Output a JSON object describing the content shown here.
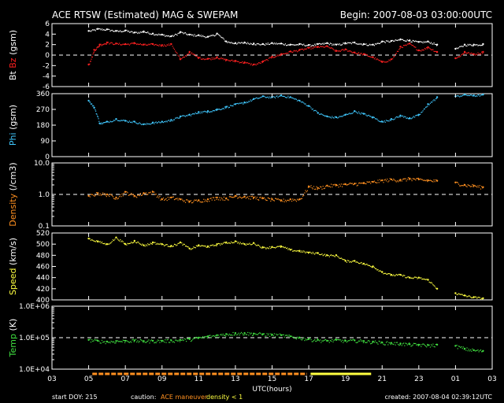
{
  "header": {
    "title": "ACE RTSW (Estimated) MAG & SWEPAM",
    "begin": "Begin: 2007-08-03 03:00:00UTC"
  },
  "footer": {
    "start_doy": "start DOY: 215",
    "caution": "caution:",
    "maneuver": "ACE maneuver",
    "density_lt1": "density < 1",
    "created": "created: 2007-08-04 02:39:12UTC"
  },
  "colors": {
    "bt": "#ffffff",
    "bz": "#ff2020",
    "phi": "#40c8ff",
    "density": "#ff9020",
    "speed": "#ffff40",
    "temp": "#40e040",
    "maneuver": "#ff9020",
    "density_flag": "#ffff40"
  },
  "chart_data": {
    "type": "scatter",
    "x_axis": {
      "xlabel": "UTC(hours)",
      "range": [
        3,
        27
      ],
      "ticks": [
        "03",
        "05",
        "07",
        "09",
        "11",
        "13",
        "15",
        "17",
        "19",
        "21",
        "23",
        "01",
        "03"
      ]
    },
    "panels": [
      {
        "id": "mag",
        "ylabel_parts": [
          {
            "text": "Bt",
            "color": "#ffffff"
          },
          {
            "text": " Bz",
            "color": "#ff2020"
          },
          {
            "text": " (gsm)",
            "color": "#ffffff"
          }
        ],
        "ylim": [
          -6,
          6
        ],
        "yticks": [
          "6",
          "4",
          "2",
          "0",
          "-2",
          "-4",
          "-6"
        ],
        "refline": 0,
        "series": [
          {
            "name": "Bt",
            "color": "#ffffff",
            "x": [
              5,
              5.5,
              6,
              6.5,
              7,
              7.5,
              8,
              8.5,
              9,
              9.5,
              10,
              10.5,
              11,
              11.5,
              12,
              12.5,
              13,
              13.5,
              14,
              14.5,
              15,
              15.5,
              16,
              16.5,
              17,
              17.5,
              18,
              18.5,
              19,
              19.5,
              20,
              20.5,
              21,
              21.5,
              22,
              22.5,
              23,
              23.5,
              24,
              25,
              25.5,
              26,
              26.5
            ],
            "y": [
              4.6,
              5.0,
              4.9,
              4.6,
              4.7,
              4.3,
              4.5,
              4.1,
              3.9,
              3.6,
              4.4,
              3.9,
              3.8,
              3.5,
              4.1,
              2.6,
              2.3,
              2.4,
              2.2,
              2.1,
              2.3,
              2.2,
              2.0,
              2.1,
              1.9,
              2.1,
              2.3,
              2.0,
              2.3,
              2.4,
              2.1,
              2.0,
              2.6,
              2.7,
              3.0,
              2.8,
              2.5,
              2.6,
              2.0,
              1.2,
              2.0,
              2.0,
              2.1
            ]
          },
          {
            "name": "Bz",
            "color": "#ff2020",
            "x": [
              5,
              5.3,
              5.6,
              6,
              6.5,
              7,
              7.5,
              8,
              8.5,
              9,
              9.5,
              10,
              10.5,
              11,
              11.5,
              12,
              12.5,
              13,
              13.5,
              14,
              14.5,
              15,
              15.5,
              16,
              16.5,
              17,
              17.5,
              18,
              18.5,
              19,
              19.5,
              20,
              20.5,
              21,
              21.5,
              22,
              22.5,
              23,
              23.5,
              24,
              25,
              25.5,
              26,
              26.5
            ],
            "y": [
              -1.8,
              1.0,
              2.0,
              2.4,
              2.2,
              2.1,
              2.3,
              2.0,
              2.1,
              1.9,
              2.1,
              -0.8,
              0.6,
              -0.5,
              -0.7,
              -0.4,
              -0.9,
              -1.1,
              -1.4,
              -1.8,
              -1.2,
              -0.3,
              0.2,
              0.7,
              1.0,
              1.4,
              1.6,
              1.7,
              0.8,
              1.1,
              0.5,
              0.2,
              -0.4,
              -1.3,
              -0.8,
              1.6,
              2.2,
              0.9,
              1.5,
              0.6,
              -0.6,
              0.6,
              0.2,
              0.6
            ]
          }
        ]
      },
      {
        "id": "phi",
        "ylabel_parts": [
          {
            "text": "Phi",
            "color": "#40c8ff"
          },
          {
            "text": " (gsm)",
            "color": "#ffffff"
          }
        ],
        "ylim": [
          0,
          360
        ],
        "yticks": [
          "360",
          "270",
          "180",
          "90",
          "0"
        ],
        "series": [
          {
            "name": "Phi",
            "color": "#40c8ff",
            "x": [
              5,
              5.3,
              5.6,
              6,
              6.5,
              7,
              7.5,
              8,
              8.5,
              9,
              9.5,
              10,
              10.5,
              11,
              11.5,
              12,
              12.5,
              13,
              13.5,
              14,
              14.5,
              15,
              15.5,
              16,
              16.5,
              17,
              17.5,
              18,
              18.5,
              19,
              19.5,
              20,
              20.5,
              21,
              21.5,
              22,
              22.5,
              23,
              23.5,
              24,
              25,
              25.5,
              26,
              26.5
            ],
            "y": [
              320,
              280,
              190,
              200,
              215,
              205,
              200,
              185,
              195,
              200,
              210,
              230,
              240,
              255,
              260,
              270,
              285,
              300,
              310,
              330,
              345,
              340,
              350,
              340,
              320,
              290,
              250,
              230,
              225,
              240,
              260,
              245,
              225,
              200,
              215,
              235,
              220,
              240,
              300,
              340,
              345,
              355,
              350,
              355
            ]
          }
        ]
      },
      {
        "id": "density",
        "ylabel_parts": [
          {
            "text": "Density",
            "color": "#ff9020"
          },
          {
            "text": " (/cm3)",
            "color": "#ffffff"
          }
        ],
        "scale": "log",
        "ylim": [
          0.1,
          10
        ],
        "yticks": [
          "10.0",
          "1.0",
          "0.1"
        ],
        "refline": 1.0,
        "series": [
          {
            "name": "Density",
            "color": "#ff9020",
            "x": [
              5,
              5.5,
              6,
              6.5,
              7,
              7.5,
              8,
              8.5,
              9,
              9.5,
              10,
              10.5,
              11,
              11.5,
              12,
              12.5,
              13,
              13.5,
              14,
              14.5,
              15,
              15.5,
              16,
              16.5,
              17,
              17.5,
              18,
              18.5,
              19,
              19.5,
              20,
              20.5,
              21,
              21.5,
              22,
              22.5,
              23,
              23.5,
              24,
              25,
              25.5,
              26,
              26.5
            ],
            "y": [
              0.9,
              1.1,
              1.0,
              0.8,
              1.2,
              0.9,
              1.1,
              1.2,
              0.7,
              0.8,
              0.7,
              0.6,
              0.65,
              0.7,
              0.8,
              0.75,
              0.9,
              0.85,
              0.8,
              0.75,
              0.7,
              0.65,
              0.7,
              0.7,
              1.8,
              1.6,
              1.9,
              2.0,
              2.1,
              2.2,
              2.3,
              2.5,
              2.8,
              3.0,
              2.9,
              3.2,
              3.0,
              2.8,
              2.7,
              2.4,
              2.0,
              1.9,
              1.7
            ]
          }
        ]
      },
      {
        "id": "speed",
        "ylabel_parts": [
          {
            "text": "Speed",
            "color": "#ffff40"
          },
          {
            "text": " (km/s)",
            "color": "#ffffff"
          }
        ],
        "ylim": [
          400,
          520
        ],
        "yticks": [
          "520",
          "500",
          "480",
          "460",
          "440",
          "420",
          "400"
        ],
        "series": [
          {
            "name": "Speed",
            "color": "#ffff40",
            "x": [
              5,
              5.5,
              6,
              6.5,
              7,
              7.5,
              8,
              8.5,
              9,
              9.5,
              10,
              10.5,
              11,
              11.5,
              12,
              12.5,
              13,
              13.5,
              14,
              14.5,
              15,
              15.5,
              16,
              16.5,
              17,
              17.5,
              18,
              18.5,
              19,
              19.5,
              20,
              20.5,
              21,
              21.5,
              22,
              22.5,
              23,
              23.5,
              24,
              25,
              25.5,
              26,
              26.5
            ],
            "y": [
              510,
              505,
              500,
              512,
              500,
              506,
              498,
              503,
              500,
              497,
              503,
              492,
              498,
              496,
              500,
              503,
              505,
              500,
              502,
              494,
              495,
              496,
              490,
              488,
              485,
              484,
              480,
              480,
              470,
              470,
              465,
              460,
              450,
              445,
              445,
              440,
              440,
              436,
              420,
              412,
              408,
              405,
              403
            ]
          }
        ]
      },
      {
        "id": "temp",
        "ylabel_parts": [
          {
            "text": "Temp",
            "color": "#40e040"
          },
          {
            "text": " (K)",
            "color": "#ffffff"
          }
        ],
        "scale": "log",
        "ylim": [
          10000,
          1000000
        ],
        "yticks": [
          "1.0E+06",
          "1.0E+05",
          "1.0E+04"
        ],
        "refline": 100000,
        "series": [
          {
            "name": "Temp",
            "color": "#40e040",
            "x": [
              5,
              5.5,
              6,
              6.5,
              7,
              7.5,
              8,
              8.5,
              9,
              9.5,
              10,
              10.5,
              11,
              11.5,
              12,
              12.5,
              13,
              13.5,
              14,
              14.5,
              15,
              15.5,
              16,
              16.5,
              17,
              17.5,
              18,
              18.5,
              19,
              19.5,
              20,
              20.5,
              21,
              21.5,
              22,
              22.5,
              23,
              23.5,
              24,
              25,
              25.5,
              26,
              26.5
            ],
            "y": [
              85000,
              80000,
              75000,
              78000,
              80000,
              82000,
              78000,
              80000,
              80000,
              82000,
              85000,
              90000,
              100000,
              110000,
              120000,
              130000,
              140000,
              140000,
              135000,
              130000,
              125000,
              120000,
              110000,
              100000,
              90000,
              85000,
              80000,
              85000,
              80000,
              82000,
              78000,
              75000,
              70000,
              68000,
              65000,
              62000,
              60000,
              58000,
              60000,
              55000,
              45000,
              40000,
              38000
            ]
          }
        ]
      }
    ],
    "status_bar": {
      "maneuver_start": 5.2,
      "maneuver_end": 16.9,
      "density_flag_start": 17.1,
      "density_flag_end": 20.4
    }
  }
}
